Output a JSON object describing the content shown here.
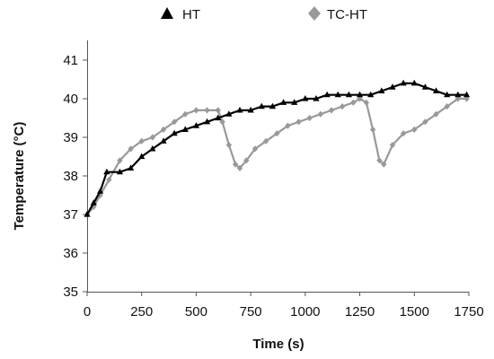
{
  "chart_data": {
    "type": "line",
    "title": "",
    "xlabel": "Time (s)",
    "ylabel": "Temperature (°C)",
    "xlim": [
      0,
      1750
    ],
    "ylim": [
      35,
      41
    ],
    "xticks": [
      0,
      250,
      500,
      750,
      1000,
      1250,
      1500,
      1750
    ],
    "yticks": [
      35,
      36,
      37,
      38,
      39,
      40,
      41
    ],
    "grid": false,
    "legend": "top",
    "series": [
      {
        "name": "HT",
        "color": "#000000",
        "marker": "triangle",
        "x": [
          0,
          30,
          60,
          90,
          150,
          200,
          250,
          300,
          350,
          400,
          450,
          500,
          550,
          600,
          650,
          700,
          750,
          800,
          850,
          900,
          950,
          1000,
          1050,
          1100,
          1150,
          1200,
          1250,
          1300,
          1350,
          1400,
          1450,
          1500,
          1550,
          1600,
          1650,
          1700,
          1740
        ],
        "y": [
          37.0,
          37.3,
          37.6,
          38.1,
          38.1,
          38.2,
          38.5,
          38.7,
          38.9,
          39.1,
          39.2,
          39.3,
          39.4,
          39.5,
          39.6,
          39.7,
          39.7,
          39.8,
          39.8,
          39.9,
          39.9,
          40.0,
          40.0,
          40.1,
          40.1,
          40.1,
          40.1,
          40.1,
          40.2,
          40.3,
          40.4,
          40.4,
          40.3,
          40.2,
          40.1,
          40.1,
          40.1
        ]
      },
      {
        "name": "TC-HT",
        "color": "#999999",
        "marker": "diamond",
        "x": [
          0,
          30,
          60,
          100,
          150,
          200,
          250,
          300,
          350,
          400,
          450,
          500,
          550,
          600,
          620,
          650,
          680,
          700,
          730,
          770,
          820,
          870,
          920,
          970,
          1020,
          1070,
          1120,
          1170,
          1220,
          1250,
          1280,
          1310,
          1340,
          1360,
          1400,
          1450,
          1500,
          1550,
          1600,
          1650,
          1700,
          1740
        ],
        "y": [
          37.0,
          37.2,
          37.5,
          37.9,
          38.4,
          38.7,
          38.9,
          39.0,
          39.2,
          39.4,
          39.6,
          39.7,
          39.7,
          39.7,
          39.4,
          38.8,
          38.3,
          38.2,
          38.4,
          38.7,
          38.9,
          39.1,
          39.3,
          39.4,
          39.5,
          39.6,
          39.7,
          39.8,
          39.9,
          40.0,
          39.9,
          39.2,
          38.4,
          38.3,
          38.8,
          39.1,
          39.2,
          39.4,
          39.6,
          39.8,
          40.0,
          40.0
        ]
      }
    ]
  }
}
